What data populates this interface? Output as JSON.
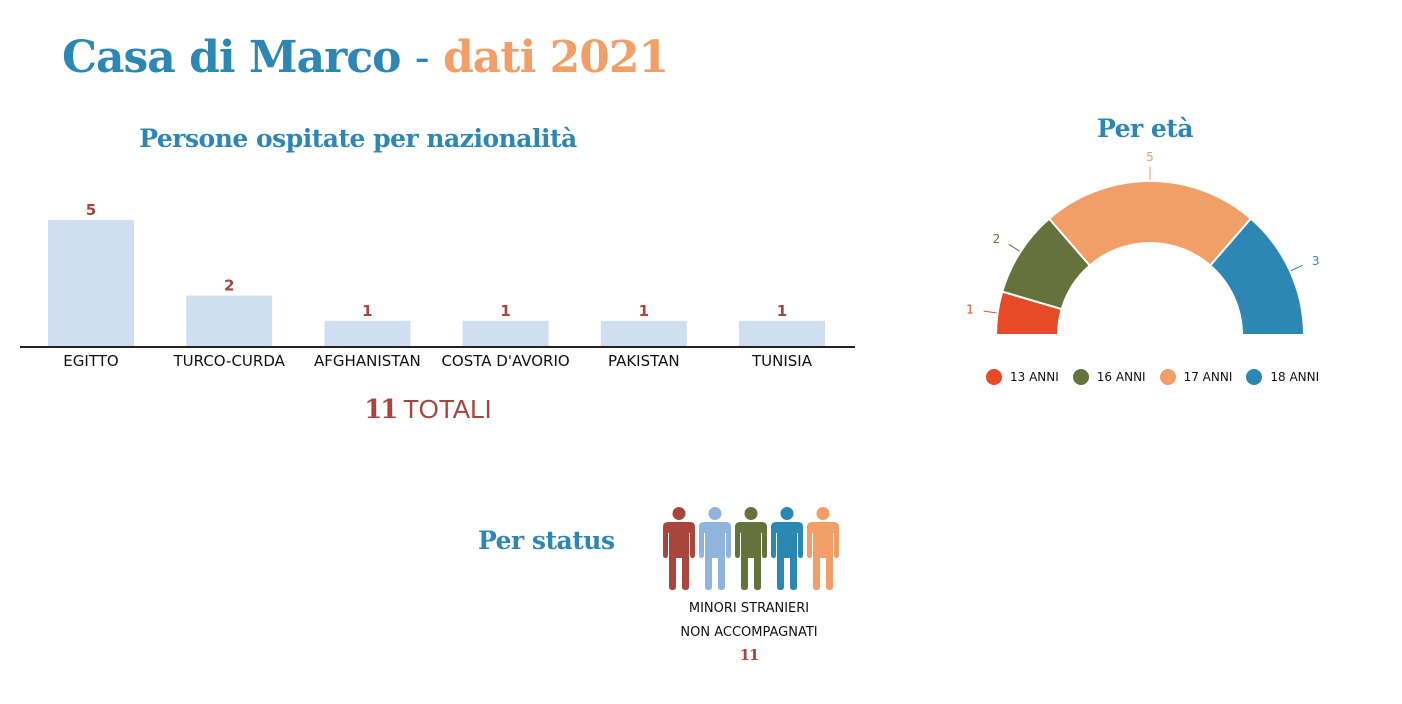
{
  "title": {
    "part1": "Casa di Marco",
    "separator": "-",
    "part2": "dati 2021"
  },
  "colors": {
    "blue": "#2d87b4",
    "orange": "#f29e67",
    "red_text": "#a9453c",
    "bar": "#cfdff1"
  },
  "totals": {
    "number": "11",
    "label": "TOTALI"
  },
  "chart_data": [
    {
      "type": "bar",
      "title": "Persone ospitate per nazionalità",
      "categories": [
        "EGITTO",
        "TURCO-CURDA",
        "AFGHANISTAN",
        "COSTA D'AVORIO",
        "PAKISTAN",
        "TUNISIA"
      ],
      "values": [
        5,
        2,
        1,
        1,
        1,
        1
      ],
      "ylim": [
        0,
        5
      ],
      "grid": false,
      "color": "#cfdff1"
    },
    {
      "type": "pie",
      "variant": "half-donut",
      "title": "Per età",
      "categories": [
        "13 ANNI",
        "16 ANNI",
        "17 ANNI",
        "18 ANNI"
      ],
      "values": [
        1,
        2,
        5,
        3
      ],
      "colors": [
        "#e64a26",
        "#66723b",
        "#f29e67",
        "#2d87b4"
      ],
      "legend": "bottom"
    }
  ],
  "status": {
    "title": "Per status",
    "caption_line1": "MINORI STRANIERI",
    "caption_line2": "NON ACCOMPAGNATI",
    "count": "11",
    "people_icons": [
      {
        "icon": "person-icon",
        "color": "#a9453c"
      },
      {
        "icon": "person-icon",
        "color": "#8fb5df"
      },
      {
        "icon": "person-icon",
        "color": "#66723b"
      },
      {
        "icon": "person-icon",
        "color": "#2d87b4"
      },
      {
        "icon": "person-icon",
        "color": "#f29e67"
      }
    ]
  }
}
